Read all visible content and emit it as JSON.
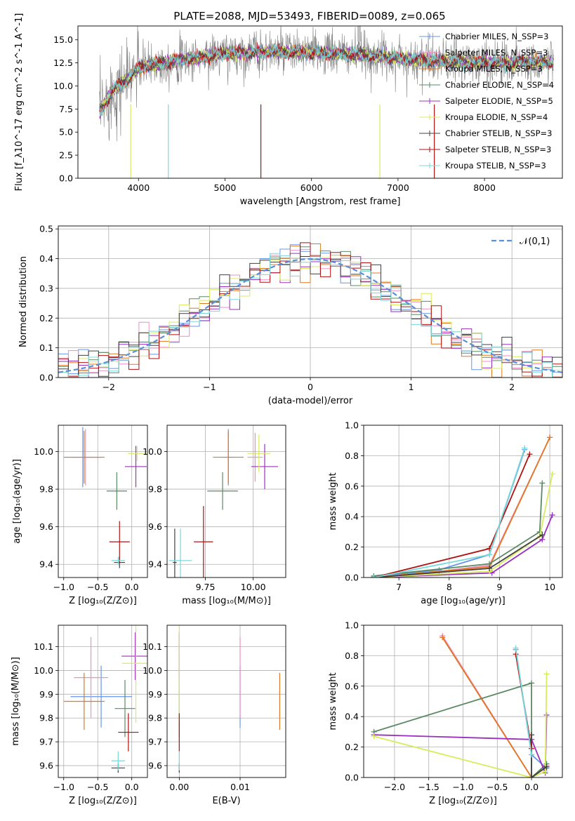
{
  "figure_title": "PLATE=2088, MJD=53493, FIBERID=0089, z=0.065",
  "chart_data": [
    {
      "id": "spectrum",
      "type": "line",
      "xlabel": "wavelength [Angstrom, rest frame]",
      "ylabel": "Flux [f_λ10^-17 erg cm^-2 s^-1 A^-1]",
      "xlim": [
        3300,
        8900
      ],
      "ylim": [
        0,
        16.5
      ],
      "xticks": [
        4000,
        5000,
        6000,
        7000,
        8000
      ],
      "yticks": [
        0.0,
        2.5,
        5.0,
        7.5,
        10.0,
        12.5,
        15.0
      ],
      "grid": false,
      "legend": "top-right",
      "data_color": "#808080",
      "data_wavelength_range": [
        3550,
        8800
      ],
      "series": [
        {
          "name": "Chabrier MILES, N_SSP=3",
          "color": "#6495ed"
        },
        {
          "name": "Salpeter MILES, N_SSP=3",
          "color": "#f08cc8"
        },
        {
          "name": "Kroupa MILES, N_SSP=3",
          "color": "#e07820"
        },
        {
          "name": "Chabrier ELODIE, N_SSP=4",
          "color": "#5a8a64"
        },
        {
          "name": "Salpeter ELODIE, N_SSP=5",
          "color": "#9b30c0"
        },
        {
          "name": "Kroupa ELODIE, N_SSP=4",
          "color": "#d8ec5a"
        },
        {
          "name": "Chabrier STELIB, N_SSP=3",
          "color": "#404040"
        },
        {
          "name": "Salpeter STELIB, N_SSP=3",
          "color": "#b01010"
        },
        {
          "name": "Kroupa STELIB, N_SSP=3",
          "color": "#78d8dc"
        }
      ],
      "continuum_nodes": [
        [
          3550,
          7.0
        ],
        [
          3700,
          9.5
        ],
        [
          3850,
          10.5
        ],
        [
          4000,
          12.0
        ],
        [
          4400,
          12.7
        ],
        [
          5000,
          13.5
        ],
        [
          5500,
          13.7
        ],
        [
          6000,
          13.6
        ],
        [
          6500,
          13.4
        ],
        [
          7000,
          13.0
        ],
        [
          7500,
          12.7
        ],
        [
          8000,
          12.5
        ],
        [
          8500,
          12.6
        ],
        [
          8800,
          12.6
        ]
      ]
    },
    {
      "id": "residuals",
      "type": "line",
      "xlabel": "(data-model)/error",
      "ylabel": "Normed distribution",
      "xlim": [
        -2.5,
        2.5
      ],
      "ylim": [
        0,
        0.51
      ],
      "xticks": [
        -2,
        -1,
        0,
        1,
        2
      ],
      "yticks": [
        0.0,
        0.1,
        0.2,
        0.3,
        0.4,
        0.5
      ],
      "grid": true,
      "legend": "top-right",
      "reference_label": "𝒩(0,1)",
      "reference_color": "#5b8fd8",
      "bin_width": 0.1
    },
    {
      "id": "age_vs_Z",
      "type": "scatter",
      "xlabel": "Z [log₁₀(Z/Z⊙)]",
      "ylabel": "age  [log₁₀(age/yr)]",
      "xlim": [
        -1.08,
        0.23
      ],
      "ylim": [
        9.33,
        10.14
      ],
      "xticks": [
        -1.0,
        -0.5,
        0.0
      ],
      "yticks": [
        9.4,
        9.6,
        9.8,
        10.0
      ],
      "grid": true,
      "points": [
        {
          "color": "#6495ed",
          "x": -0.72,
          "xerr": 0.27,
          "y": 9.97,
          "yerr": 0.16
        },
        {
          "color": "#f08cc8",
          "x": -0.68,
          "xerr": 0.22,
          "y": 9.97,
          "yerr": 0.15
        },
        {
          "color": "#e07820",
          "x": -0.7,
          "xerr": 0.3,
          "y": 9.97,
          "yerr": 0.14
        },
        {
          "color": "#5a8a64",
          "x": -0.22,
          "xerr": 0.15,
          "y": 9.79,
          "yerr": 0.1
        },
        {
          "color": "#9b30c0",
          "x": 0.06,
          "xerr": 0.16,
          "y": 9.92,
          "yerr": 0.11
        },
        {
          "color": "#d8ec5a",
          "x": 0.08,
          "xerr": 0.14,
          "y": 9.99,
          "yerr": 0.04
        },
        {
          "color": "#404040",
          "x": -0.18,
          "xerr": 0.08,
          "y": 9.41,
          "yerr": 0.03
        },
        {
          "color": "#b01010",
          "x": -0.18,
          "xerr": 0.15,
          "y": 9.52,
          "yerr": 0.11
        },
        {
          "color": "#78d8dc",
          "x": -0.2,
          "xerr": 0.1,
          "y": 9.42,
          "yerr": 0.02
        }
      ]
    },
    {
      "id": "age_vs_mass",
      "type": "scatter",
      "xlabel": "mass [log₁₀(M/M⊙)]",
      "ylabel": "",
      "xlim": [
        9.55,
        10.17
      ],
      "ylim": [
        9.33,
        10.14
      ],
      "xticks": [
        9.75,
        10.0
      ],
      "yticks": [
        9.4,
        9.6,
        9.8,
        10.0
      ],
      "grid": true,
      "points": [
        {
          "color": "#6495ed",
          "x": 9.87,
          "xerr": 0.03,
          "y": 9.97,
          "yerr": 0.15
        },
        {
          "color": "#f08cc8",
          "x": 10.01,
          "xerr": 0.04,
          "y": 9.97,
          "yerr": 0.13
        },
        {
          "color": "#e07820",
          "x": 9.87,
          "xerr": 0.08,
          "y": 9.97,
          "yerr": 0.14
        },
        {
          "color": "#5a8a64",
          "x": 9.84,
          "xerr": 0.08,
          "y": 9.79,
          "yerr": 0.1
        },
        {
          "color": "#9b30c0",
          "x": 10.06,
          "xerr": 0.07,
          "y": 9.92,
          "yerr": 0.12
        },
        {
          "color": "#d8ec5a",
          "x": 10.03,
          "xerr": 0.06,
          "y": 9.99,
          "yerr": 0.1
        },
        {
          "color": "#404040",
          "x": 9.59,
          "xerr": 0.01,
          "y": 9.41,
          "yerr": 0.18
        },
        {
          "color": "#b01010",
          "x": 9.74,
          "xerr": 0.05,
          "y": 9.52,
          "yerr": 0.19
        },
        {
          "color": "#78d8dc",
          "x": 9.62,
          "xerr": 0.06,
          "y": 9.42,
          "yerr": 0.17
        }
      ]
    },
    {
      "id": "weight_vs_age",
      "type": "line",
      "xlabel": "age  [log₁₀(age/yr)]",
      "ylabel": "mass weight",
      "xlim": [
        6.3,
        10.25
      ],
      "ylim": [
        0,
        1.0
      ],
      "xticks": [
        7,
        8,
        9,
        10
      ],
      "yticks": [
        0.0,
        0.2,
        0.4,
        0.6,
        0.8,
        1.0
      ],
      "grid": true,
      "series": [
        {
          "color": "#6495ed",
          "points": [
            [
              6.5,
              0.0
            ],
            [
              7.8,
              0.05
            ],
            [
              8.8,
              0.15
            ],
            [
              9.5,
              0.84
            ]
          ]
        },
        {
          "color": "#f08cc8",
          "points": [
            [
              6.5,
              0.0
            ],
            [
              7.8,
              0.04
            ],
            [
              8.8,
              0.08
            ],
            [
              10.0,
              0.92
            ]
          ]
        },
        {
          "color": "#e07820",
          "points": [
            [
              6.5,
              0.0
            ],
            [
              7.8,
              0.04
            ],
            [
              8.8,
              0.07
            ],
            [
              10.0,
              0.92
            ]
          ]
        },
        {
          "color": "#5a8a64",
          "points": [
            [
              6.5,
              0.01
            ],
            [
              8.8,
              0.09
            ],
            [
              9.8,
              0.3
            ],
            [
              9.85,
              0.62
            ]
          ]
        },
        {
          "color": "#9b30c0",
          "points": [
            [
              6.5,
              0.0
            ],
            [
              8.85,
              0.03
            ],
            [
              9.85,
              0.25
            ],
            [
              10.05,
              0.41
            ]
          ]
        },
        {
          "color": "#d8ec5a",
          "points": [
            [
              6.5,
              0.0
            ],
            [
              8.8,
              0.04
            ],
            [
              9.8,
              0.27
            ],
            [
              10.05,
              0.68
            ]
          ]
        },
        {
          "color": "#404040",
          "points": [
            [
              6.5,
              0.0
            ],
            [
              8.8,
              0.06
            ],
            [
              9.85,
              0.28
            ]
          ]
        },
        {
          "color": "#b01010",
          "points": [
            [
              6.5,
              0.0
            ],
            [
              8.8,
              0.19
            ],
            [
              9.6,
              0.81
            ]
          ]
        },
        {
          "color": "#78d8dc",
          "points": [
            [
              6.5,
              0.0
            ],
            [
              8.8,
              0.15
            ],
            [
              9.5,
              0.85
            ]
          ]
        }
      ]
    },
    {
      "id": "mass_vs_Z",
      "type": "scatter",
      "xlabel": "Z [log₁₀(Z/Z⊙)]",
      "ylabel": "mass [log₁₀(M/M⊙)]",
      "xlim": [
        -1.08,
        0.23
      ],
      "ylim": [
        9.55,
        10.19
      ],
      "xticks": [
        -1.0,
        -0.5,
        0.0
      ],
      "yticks": [
        9.6,
        9.7,
        9.8,
        9.9,
        10.0,
        10.1
      ],
      "grid": true,
      "points": [
        {
          "color": "#6495ed",
          "x": -0.45,
          "xerr": 0.45,
          "y": 9.89,
          "yerr": 0.13
        },
        {
          "color": "#f08cc8",
          "x": -0.6,
          "xerr": 0.25,
          "y": 9.97,
          "yerr": 0.17
        },
        {
          "color": "#e07820",
          "x": -0.7,
          "xerr": 0.3,
          "y": 9.87,
          "yerr": 0.12
        },
        {
          "color": "#5a8a64",
          "x": -0.1,
          "xerr": 0.15,
          "y": 9.84,
          "yerr": 0.12
        },
        {
          "color": "#9b30c0",
          "x": 0.05,
          "xerr": 0.2,
          "y": 10.06,
          "yerr": 0.1
        },
        {
          "color": "#d8ec5a",
          "x": 0.06,
          "xerr": 0.2,
          "y": 10.03,
          "yerr": 0.25
        },
        {
          "color": "#404040",
          "x": -0.2,
          "xerr": 0.1,
          "y": 9.59,
          "yerr": 0.02
        },
        {
          "color": "#b01010",
          "x": -0.05,
          "xerr": 0.15,
          "y": 9.74,
          "yerr": 0.08
        },
        {
          "color": "#78d8dc",
          "x": -0.2,
          "xerr": 0.1,
          "y": 9.62,
          "yerr": 0.04
        }
      ]
    },
    {
      "id": "mass_vs_ebv",
      "type": "scatter",
      "xlabel": "E(B-V)",
      "ylabel": "",
      "xlim": [
        -0.002,
        0.0175
      ],
      "ylim": [
        9.55,
        10.19
      ],
      "xticks": [
        0.0,
        0.01
      ],
      "yticks": [
        9.6,
        9.7,
        9.8,
        9.9,
        10.0,
        10.1
      ],
      "grid": true,
      "points": [
        {
          "color": "#6495ed",
          "x": 0.01,
          "y": 9.89,
          "yerr": 0.13
        },
        {
          "color": "#f08cc8",
          "x": 0.01,
          "y": 9.97,
          "yerr": 0.17
        },
        {
          "color": "#e07820",
          "x": 0.0165,
          "y": 9.87,
          "yerr": 0.12
        },
        {
          "color": "#5a8a64",
          "x": 0.0,
          "y": 9.84,
          "yerr": 0.12
        },
        {
          "color": "#9b30c0",
          "x": 0.0,
          "y": 10.06,
          "yerr": 0.1
        },
        {
          "color": "#d8ec5a",
          "x": 0.0,
          "y": 10.03,
          "yerr": 0.25
        },
        {
          "color": "#404040",
          "x": 0.0,
          "y": 9.59,
          "yerr": 0.02
        },
        {
          "color": "#b01010",
          "x": 0.0,
          "y": 9.74,
          "yerr": 0.08
        },
        {
          "color": "#78d8dc",
          "x": 0.0,
          "y": 9.62,
          "yerr": 0.04
        }
      ]
    },
    {
      "id": "weight_vs_Z",
      "type": "line",
      "xlabel": "Z [log₁₀(Z/Z⊙)]",
      "ylabel": "mass weight",
      "xlim": [
        -2.45,
        0.45
      ],
      "ylim": [
        0,
        1.0
      ],
      "xticks": [
        -2.0,
        -1.5,
        -1.0,
        -0.5,
        0.0
      ],
      "yticks": [
        0.0,
        0.2,
        0.4,
        0.6,
        0.8,
        1.0
      ],
      "grid": true,
      "series": [
        {
          "color": "#6495ed",
          "points": [
            [
              -0.23,
              0.84
            ],
            [
              0.0,
              0.15
            ],
            [
              0.22,
              0.06
            ]
          ]
        },
        {
          "color": "#f08cc8",
          "points": [
            [
              -1.3,
              0.93
            ],
            [
              0.0,
              0.0
            ],
            [
              0.22,
              0.08
            ]
          ]
        },
        {
          "color": "#e07820",
          "points": [
            [
              -1.3,
              0.92
            ],
            [
              0.0,
              0.0
            ],
            [
              0.22,
              0.07
            ]
          ]
        },
        {
          "color": "#5a8a64",
          "points": [
            [
              -2.3,
              0.3
            ],
            [
              0.0,
              0.62
            ],
            [
              0.0,
              0.0
            ],
            [
              0.22,
              0.09
            ]
          ]
        },
        {
          "color": "#9b30c0",
          "points": [
            [
              -2.3,
              0.28
            ],
            [
              0.0,
              0.25
            ],
            [
              0.2,
              0.03
            ],
            [
              0.22,
              0.41
            ]
          ]
        },
        {
          "color": "#d8ec5a",
          "points": [
            [
              -2.3,
              0.27
            ],
            [
              0.0,
              0.0
            ],
            [
              0.2,
              0.04
            ],
            [
              0.22,
              0.68
            ]
          ]
        },
        {
          "color": "#404040",
          "points": [
            [
              0.0,
              0.28
            ],
            [
              0.0,
              0.0
            ],
            [
              0.22,
              0.07
            ]
          ]
        },
        {
          "color": "#b01010",
          "points": [
            [
              -0.23,
              0.81
            ],
            [
              0.0,
              0.19
            ]
          ]
        },
        {
          "color": "#78d8dc",
          "points": [
            [
              -0.23,
              0.85
            ],
            [
              0.0,
              0.15
            ]
          ]
        }
      ]
    }
  ]
}
